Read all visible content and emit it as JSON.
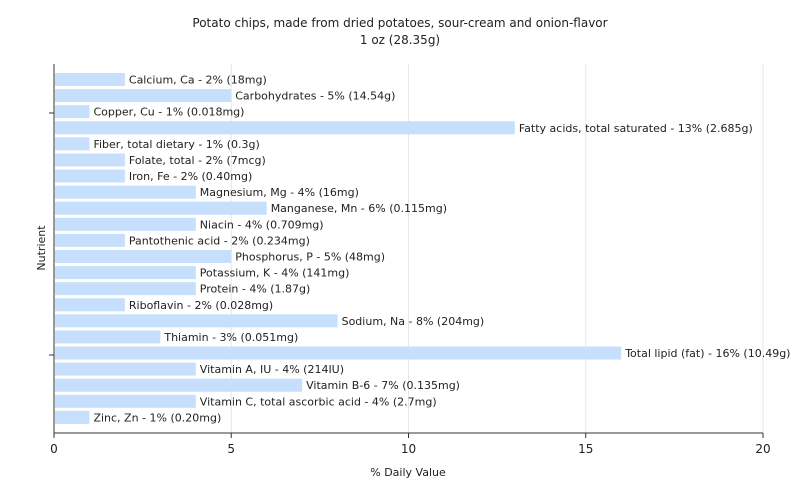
{
  "chart_data": {
    "type": "bar",
    "orientation": "horizontal",
    "title": "Potato chips, made from dried potatoes, sour-cream and onion-flavor",
    "subtitle": "1 oz (28.35g)",
    "xlabel": "% Daily Value",
    "ylabel": "Nutrient",
    "xlim": [
      0,
      20
    ],
    "xticks": [
      0,
      5,
      10,
      15,
      20
    ],
    "grid": true,
    "bar_color": "#c6dffc",
    "categories": [
      "Calcium, Ca",
      "Carbohydrates",
      "Copper, Cu",
      "Fatty acids, total saturated",
      "Fiber, total dietary",
      "Folate, total",
      "Iron, Fe",
      "Magnesium, Mg",
      "Manganese, Mn",
      "Niacin",
      "Pantothenic acid",
      "Phosphorus, P",
      "Potassium, K",
      "Protein",
      "Riboflavin",
      "Sodium, Na",
      "Thiamin",
      "Total lipid (fat)",
      "Vitamin A, IU",
      "Vitamin B-6",
      "Vitamin C, total ascorbic acid",
      "Zinc, Zn"
    ],
    "values": [
      2,
      5,
      1,
      13,
      1,
      2,
      2,
      4,
      6,
      4,
      2,
      5,
      4,
      4,
      2,
      8,
      3,
      16,
      4,
      7,
      4,
      1
    ],
    "labels": [
      "Calcium, Ca - 2% (18mg)",
      "Carbohydrates - 5% (14.54g)",
      "Copper, Cu - 1% (0.018mg)",
      "Fatty acids, total saturated - 13% (2.685g)",
      "Fiber, total dietary - 1% (0.3g)",
      "Folate, total - 2% (7mcg)",
      "Iron, Fe - 2% (0.40mg)",
      "Magnesium, Mg - 4% (16mg)",
      "Manganese, Mn - 6% (0.115mg)",
      "Niacin - 4% (0.709mg)",
      "Pantothenic acid - 2% (0.234mg)",
      "Phosphorus, P - 5% (48mg)",
      "Potassium, K - 4% (141mg)",
      "Protein - 4% (1.87g)",
      "Riboflavin - 2% (0.028mg)",
      "Sodium, Na - 8% (204mg)",
      "Thiamin - 3% (0.051mg)",
      "Total lipid (fat) - 16% (10.49g)",
      "Vitamin A, IU - 4% (214IU)",
      "Vitamin B-6 - 7% (0.135mg)",
      "Vitamin C, total ascorbic acid - 4% (2.7mg)",
      "Zinc, Zn - 1% (0.20mg)"
    ]
  }
}
